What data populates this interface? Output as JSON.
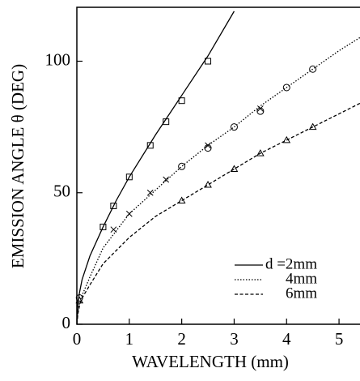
{
  "chart_data": {
    "type": "line",
    "xlabel": "WAVELENGTH (mm)",
    "ylabel": "EMISSION ANGLE θ (DEG)",
    "xlim": [
      0,
      5.4
    ],
    "ylim": [
      0,
      120.5
    ],
    "xticks": [
      0,
      1,
      2,
      3,
      4,
      5
    ],
    "yticks": [
      0,
      50,
      100
    ],
    "legend": "lower right",
    "series": [
      {
        "name": "d =2mm",
        "style": "solid",
        "color": "#000000",
        "x": [
          0,
          0.02,
          0.05,
          0.1,
          0.25,
          0.5,
          0.75,
          1,
          1.5,
          2,
          2.5,
          3
        ],
        "values": [
          0,
          8,
          12,
          17,
          26,
          37,
          47,
          56,
          72,
          87,
          102,
          119
        ]
      },
      {
        "name": "4mm",
        "style": "dotted",
        "color": "#000000",
        "x": [
          0,
          0.02,
          0.05,
          0.1,
          0.25,
          0.5,
          1,
          1.5,
          2,
          2.5,
          3,
          3.5,
          4,
          4.5,
          5,
          5.4
        ],
        "values": [
          0,
          5,
          8,
          11,
          18,
          29,
          42,
          51,
          60,
          68,
          75,
          83,
          90,
          97,
          104,
          109
        ]
      },
      {
        "name": "6mm",
        "style": "dashed",
        "color": "#000000",
        "x": [
          0,
          0.02,
          0.05,
          0.1,
          0.25,
          0.5,
          1,
          1.5,
          2,
          2.5,
          3,
          3.5,
          4,
          4.5,
          5,
          5.4
        ],
        "values": [
          0,
          4,
          7,
          10,
          15,
          23,
          33,
          41,
          47,
          53,
          59,
          65,
          70,
          75,
          80,
          84
        ]
      },
      {
        "marker": "square",
        "color": "#000000",
        "x": [
          0.5,
          0.7,
          1,
          1.4,
          1.7,
          2,
          2.5
        ],
        "values": [
          37,
          45,
          56,
          68,
          77,
          85,
          100
        ]
      },
      {
        "marker": "cross",
        "color": "#000000",
        "x": [
          0.7,
          1,
          1.4,
          1.7,
          2.5,
          3.5
        ],
        "values": [
          36,
          42,
          50,
          55,
          68,
          82
        ]
      },
      {
        "marker": "circle",
        "color": "#000000",
        "x": [
          0.05,
          2,
          2.5,
          3,
          3.5,
          4,
          4.5
        ],
        "values": [
          10,
          60,
          67,
          75,
          81,
          90,
          97
        ]
      },
      {
        "marker": "triangle",
        "color": "#000000",
        "x": [
          0.05,
          2,
          2.5,
          3,
          3.5,
          4,
          4.5
        ],
        "values": [
          9,
          47,
          53,
          59,
          65,
          70,
          75
        ]
      }
    ]
  }
}
